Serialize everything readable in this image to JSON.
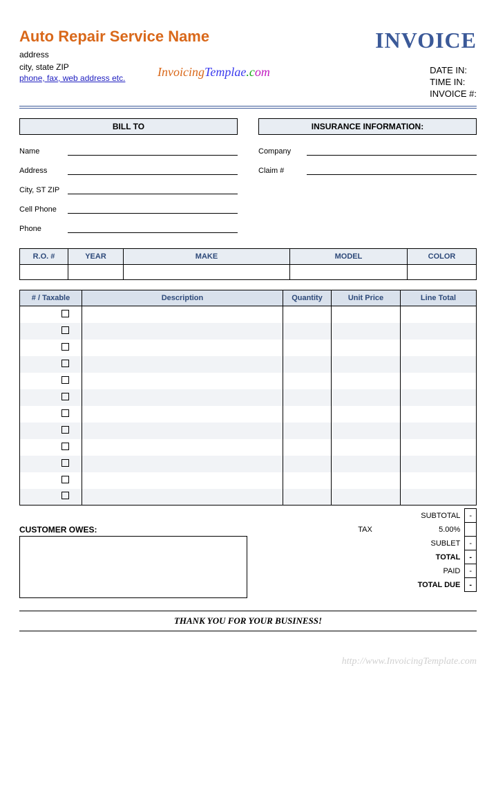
{
  "header": {
    "company_name": "Auto Repair Service Name",
    "address_line": "address",
    "city_state": "city, state ZIP",
    "contact_link": "phone, fax, web address etc.",
    "invoice_word": "INVOICE",
    "watermark_logo_p1": "Invoicing",
    "watermark_logo_p2": "Templae",
    "watermark_logo_p3": ".c",
    "watermark_logo_p4": "om",
    "meta": {
      "date_in": "DATE IN:",
      "time_in": "TIME IN:",
      "invoice_no": "INVOICE #:"
    }
  },
  "sections": {
    "bill_to": "BILL TO",
    "insurance": "INSURANCE INFORMATION:"
  },
  "bill_fields": {
    "name": "Name",
    "address": "Address",
    "city": "City, ST ZIP",
    "cell": "Cell Phone",
    "phone": "Phone"
  },
  "ins_fields": {
    "company": "Company",
    "claim": "Claim #"
  },
  "vehicle_cols": {
    "ro": "R.O. #",
    "year": "YEAR",
    "make": "MAKE",
    "model": "MODEL",
    "color": "COLOR"
  },
  "item_cols": {
    "taxable": "# / Taxable",
    "desc": "Description",
    "qty": "Quantity",
    "unit": "Unit Price",
    "line": "Line Total"
  },
  "item_widths": {
    "taxable": 90,
    "desc": 280,
    "qty": 70,
    "unit": 100,
    "line": 110
  },
  "item_row_count": 12,
  "totals": {
    "tax_label": "TAX",
    "tax_rate": "5.00%",
    "subtotal_lbl": "SUBTOTAL",
    "subtotal_val": "-",
    "sublet_lbl": "SUBLET",
    "sublet_val": "-",
    "total_lbl": "TOTAL",
    "total_val": "-",
    "paid_lbl": "PAID",
    "paid_val": "-",
    "due_lbl": "TOTAL DUE",
    "due_val": "-"
  },
  "owes_label": "CUSTOMER OWES:",
  "thanks": "THANK YOU FOR YOUR BUSINESS!",
  "footer_watermark": "http://www.InvoicingTemplate.com",
  "colors": {
    "accent_orange": "#d9681a",
    "accent_blue": "#3b5998",
    "header_bg": "#e8edf3",
    "items_header_bg": "#d9e1ec",
    "stripe": "#f1f3f6"
  }
}
